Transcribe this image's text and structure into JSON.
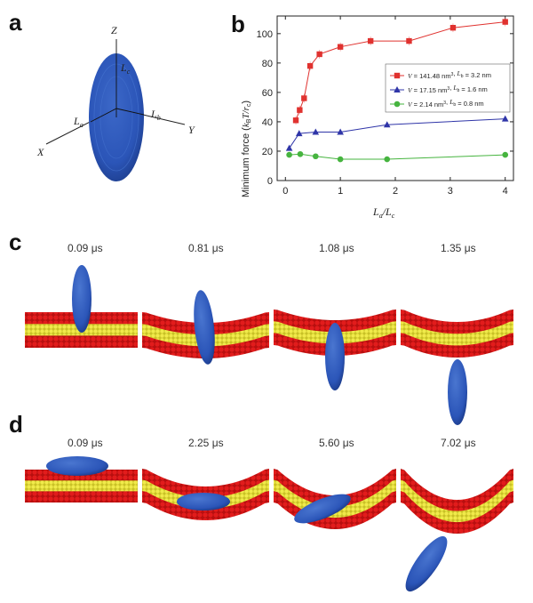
{
  "panels": {
    "a": {
      "letter": "a"
    },
    "b": {
      "letter": "b"
    },
    "c": {
      "letter": "c"
    },
    "d": {
      "letter": "d"
    }
  },
  "schematic": {
    "axis_z": "Z",
    "axis_x": "X",
    "axis_y": "Y",
    "label_la": "L",
    "label_la_sub": "a",
    "label_lb": "L",
    "label_lb_sub": "b",
    "label_lc": "L",
    "label_lc_sub": "c"
  },
  "row_c": {
    "times": [
      "0.09 μs",
      "0.81 μs",
      "1.08 μs",
      "1.35 μs"
    ]
  },
  "row_d": {
    "times": [
      "0.09 μs",
      "2.25 μs",
      "5.60 μs",
      "7.02 μs"
    ]
  },
  "colors": {
    "particle": "#2b55b8",
    "head": "#d01616",
    "tail": "#e6e13a",
    "s1": "#e0322f",
    "s2": "#2f35a8",
    "s3": "#46b43f"
  },
  "chart_data": {
    "type": "line",
    "ylabel": "Minimum force (k_B T / r_c)",
    "ylabel_parts": {
      "main": "Minimum force (",
      "k": "k",
      "ksub": "B",
      "rest": "T/",
      "r": "r",
      "rsub": "c",
      "close": ")"
    },
    "xlabel_parts": {
      "a": "L",
      "asub": "a",
      "slash": "/",
      "c": "L",
      "csub": "c"
    },
    "xlim": [
      -0.15,
      4.15
    ],
    "ylim": [
      0,
      112
    ],
    "xticks": [
      0,
      1,
      2,
      3,
      4
    ],
    "yticks": [
      0,
      20,
      40,
      60,
      80,
      100
    ],
    "legend_placement": "right",
    "series": [
      {
        "name": "V = 141.48 nm³, L_b = 3.2 nm",
        "legend_v": "141.48 nm",
        "legend_lb": "3.2 nm",
        "marker": "square",
        "x": [
          0.19,
          0.26,
          0.34,
          0.45,
          0.62,
          1.0,
          1.55,
          2.25,
          3.05,
          4.0
        ],
        "y": [
          41,
          48,
          56,
          78,
          86,
          91,
          95,
          95,
          104,
          108
        ]
      },
      {
        "name": "V = 17.15 nm³, L_b = 1.6 nm",
        "legend_v": "17.15 nm",
        "legend_lb": "1.6 nm",
        "marker": "triangle",
        "x": [
          0.07,
          0.25,
          0.55,
          1.0,
          1.85,
          4.0
        ],
        "y": [
          22,
          32,
          33,
          33,
          38,
          42
        ]
      },
      {
        "name": "V = 2.14 nm³, L_b = 0.8 nm",
        "legend_v": "2.14 nm",
        "legend_lb": "0.8 nm",
        "marker": "circle",
        "x": [
          0.07,
          0.27,
          0.55,
          1.0,
          1.85,
          4.0
        ],
        "y": [
          17.5,
          18,
          16.5,
          14.5,
          14.5,
          17.5
        ]
      }
    ]
  }
}
